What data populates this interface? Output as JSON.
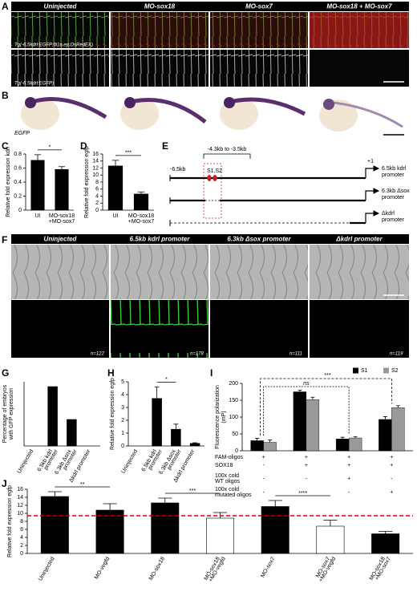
{
  "panels": {
    "A": {
      "label": "A",
      "columns": [
        "Uninjected",
        "MO-sox18",
        "MO-sox7",
        "MO-sox18 + MO-sox7"
      ],
      "captions": [
        "Tg(-6.5kdrl:EGFP;fli1a.ep:DsRedEX)",
        "Tg(-6.5kdrl:EGFP)"
      ]
    },
    "B": {
      "label": "B",
      "caption": "EGFP"
    },
    "E": {
      "label": "E",
      "region": "-4.3kb to -3.5kb",
      "start": "-6.5kb",
      "tss": "+1",
      "sites": "S1,S2",
      "constructs": [
        [
          "6.5kb kdrl",
          "promoter"
        ],
        [
          "6.3kb Δsox",
          "promoter"
        ],
        [
          "Δkdrl",
          "promoter"
        ]
      ]
    },
    "F": {
      "label": "F",
      "columns": [
        "Uninjected",
        "6.5kb kdrl promoter",
        "6.3kb Δsox promoter",
        "Δkdrl promoter"
      ],
      "counts": [
        "n=122",
        "n=178",
        "n=111",
        "n=119"
      ]
    }
  },
  "chart_data": [
    {
      "label": "C",
      "type": "bar",
      "ylabel": "Relative fold expression kdrl",
      "categories": [
        "UI",
        [
          "MO-sox18",
          "+MO-sox7"
        ]
      ],
      "values": [
        0.71,
        0.58
      ],
      "errors": [
        0.08,
        0.04
      ],
      "color": "#000000",
      "ylim": [
        0,
        0.8
      ],
      "yticks": [
        0,
        0.2,
        0.4,
        0.6,
        0.8
      ],
      "annotations": [
        "*"
      ]
    },
    {
      "label": "D",
      "type": "bar",
      "ylabel": "Relative fold expression egfp",
      "categories": [
        "UI",
        [
          "MO-sox18",
          "+MO-sox7"
        ]
      ],
      "values": [
        12.6,
        4.6
      ],
      "errors": [
        1.6,
        0.6
      ],
      "color": "#000000",
      "ylim": [
        0,
        16
      ],
      "yticks": [
        0,
        2,
        4,
        6,
        8,
        10,
        12,
        14,
        16
      ],
      "annotations": [
        "***"
      ]
    },
    {
      "label": "G",
      "type": "bar",
      "ylabel": [
        "Percentage of embryos",
        "with GFP expression"
      ],
      "categories": [
        "Uninjected",
        [
          "6.5kb kdrl",
          "promoter"
        ],
        [
          "6.3kb Δsox",
          "promoter"
        ],
        "Δkdrl promoter"
      ],
      "values": [
        0,
        74,
        33,
        0
      ],
      "color": "#000000",
      "ylim": [
        0,
        80
      ]
    },
    {
      "label": "H",
      "type": "bar",
      "ylabel": "Relative fold expression egfp",
      "categories": [
        "Uninjected",
        [
          "6.5kb kdrl",
          "promoter"
        ],
        [
          "6.3kb Δsox",
          "promoter"
        ],
        "Δkdrl promoter"
      ],
      "values": [
        0,
        3.7,
        1.3,
        0.2
      ],
      "errors": [
        null,
        0.9,
        0.4,
        0.05
      ],
      "color": "#000000",
      "ylim": [
        0,
        5
      ],
      "yticks": [
        0,
        1,
        2,
        3,
        4,
        5
      ],
      "annotations": [
        "*"
      ]
    },
    {
      "label": "I",
      "type": "bar",
      "ylabel": [
        "Fluorescence polarization",
        "(mP)"
      ],
      "series": [
        {
          "name": "S1",
          "color": "#000000",
          "values": [
            30,
            175,
            35,
            93
          ],
          "errors": [
            7,
            5,
            5,
            8
          ]
        },
        {
          "name": "S2",
          "color": "#999999",
          "values": [
            25,
            152,
            38,
            128
          ],
          "errors": [
            7,
            7,
            4,
            6
          ]
        }
      ],
      "ylim": [
        0,
        200
      ],
      "yticks": [
        0,
        50,
        100,
        150,
        200
      ],
      "annotations": [
        "ns",
        "***"
      ],
      "table": [
        {
          "label": [
            "FAM-oligos"
          ],
          "cells": [
            "+",
            "+",
            "+",
            "+"
          ]
        },
        {
          "label": [
            "SOX18"
          ],
          "cells": [
            "-",
            "+",
            "+",
            "+"
          ]
        },
        {
          "label": [
            "100x cold",
            "WT oligos"
          ],
          "cells": [
            "-",
            "-",
            "+",
            "-"
          ]
        },
        {
          "label": [
            "100x cold",
            "mutated oligos"
          ],
          "cells": [
            "-",
            "-",
            "-",
            "+"
          ]
        }
      ]
    },
    {
      "label": "J",
      "type": "bar",
      "ylabel": "Relative fold expression egfp",
      "categories": [
        "Uninjected",
        "MO-vegfd",
        "MO-sox18",
        [
          "MO-sox18",
          "+MO-vegfd"
        ],
        "MO-sox7",
        [
          "MO-sox7",
          "+MO-vegfd"
        ],
        [
          "MO-sox18",
          "+MO-sox7"
        ]
      ],
      "values": [
        14.2,
        10.8,
        12.6,
        8.8,
        11.7,
        6.8,
        4.9
      ],
      "errors": [
        1.2,
        1.6,
        1.2,
        1.4,
        1.5,
        1.5,
        0.6
      ],
      "colors": [
        "#000000",
        "#000000",
        "#000000",
        "#ffffff",
        "#000000",
        "#ffffff",
        "#000000"
      ],
      "ylim": [
        0,
        16
      ],
      "yticks": [
        0,
        2,
        4,
        6,
        8,
        10,
        12,
        14,
        16
      ],
      "reference_line": {
        "value": 9.4,
        "color": "#cc0000"
      },
      "annotations": [
        "**",
        "***",
        "****"
      ]
    }
  ]
}
